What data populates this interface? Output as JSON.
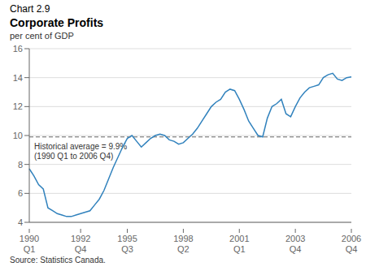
{
  "chart_data": {
    "type": "line",
    "title": "Chart 2.9",
    "subtitle": "Corporate Profits",
    "y_label": "per cent of GDP",
    "source": "Source: Statistics Canada.",
    "historical_avg": {
      "value": 9.9,
      "label": "Historical average = 9.9%\n(1990 Q1 to 2006 Q4)"
    },
    "categories": [
      "1990\nQ1",
      null,
      null,
      null,
      null,
      null,
      null,
      null,
      null,
      null,
      null,
      "1992\nQ4",
      null,
      null,
      null,
      null,
      null,
      null,
      null,
      null,
      null,
      "1995\nQ3",
      null,
      null,
      null,
      null,
      null,
      null,
      null,
      null,
      null,
      null,
      null,
      "1998\nQ2",
      null,
      null,
      null,
      null,
      null,
      null,
      null,
      null,
      null,
      null,
      null,
      "2001\nQ1",
      null,
      null,
      null,
      null,
      null,
      null,
      null,
      null,
      null,
      null,
      null,
      "2003\nQ4",
      null,
      null,
      null,
      null,
      null,
      null,
      null,
      null,
      null,
      null,
      null,
      "2006\nQ4"
    ],
    "values": [
      7.7,
      7.2,
      6.6,
      6.3,
      5.0,
      4.8,
      4.6,
      4.5,
      4.4,
      4.4,
      4.5,
      4.6,
      4.7,
      4.8,
      5.2,
      5.6,
      6.2,
      7.0,
      7.8,
      8.5,
      9.2,
      9.8,
      10.0,
      9.6,
      9.2,
      9.5,
      9.8,
      10.0,
      10.1,
      10.0,
      9.7,
      9.6,
      9.4,
      9.5,
      9.8,
      10.1,
      10.5,
      11.0,
      11.5,
      12.0,
      12.3,
      12.5,
      13.0,
      13.2,
      13.1,
      12.5,
      11.8,
      11.0,
      10.5,
      10.0,
      9.9,
      11.2,
      12.0,
      12.2,
      12.5,
      11.5,
      11.3,
      12.0,
      12.6,
      13.0,
      13.3,
      13.4,
      13.5,
      14.0,
      14.2,
      14.3,
      13.9,
      13.8,
      14.0,
      14.05
    ],
    "ylim": [
      4,
      16
    ],
    "yticks": [
      4,
      6,
      8,
      10,
      12,
      14,
      16
    ],
    "grid": true
  }
}
